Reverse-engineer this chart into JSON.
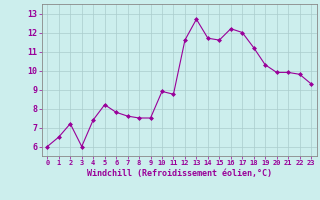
{
  "x": [
    0,
    1,
    2,
    3,
    4,
    5,
    6,
    7,
    8,
    9,
    10,
    11,
    12,
    13,
    14,
    15,
    16,
    17,
    18,
    19,
    20,
    21,
    22,
    23
  ],
  "y": [
    6.0,
    6.5,
    7.2,
    6.0,
    7.4,
    8.2,
    7.8,
    7.6,
    7.5,
    7.5,
    8.9,
    8.75,
    11.6,
    12.7,
    11.7,
    11.6,
    12.2,
    12.0,
    11.2,
    10.3,
    9.9,
    9.9,
    9.8,
    9.3
  ],
  "line_color": "#990099",
  "marker": "D",
  "marker_size": 2,
  "bg_color": "#cceeed",
  "grid_color": "#aacccc",
  "xlabel": "Windchill (Refroidissement éolien,°C)",
  "tick_color": "#990099",
  "ylim": [
    5.5,
    13.5
  ],
  "xlim": [
    -0.5,
    23.5
  ],
  "yticks": [
    6,
    7,
    8,
    9,
    10,
    11,
    12,
    13
  ],
  "xticks": [
    0,
    1,
    2,
    3,
    4,
    5,
    6,
    7,
    8,
    9,
    10,
    11,
    12,
    13,
    14,
    15,
    16,
    17,
    18,
    19,
    20,
    21,
    22,
    23
  ],
  "xtick_labels": [
    "0",
    "1",
    "2",
    "3",
    "4",
    "5",
    "6",
    "7",
    "8",
    "9",
    "10",
    "11",
    "12",
    "13",
    "14",
    "15",
    "16",
    "17",
    "18",
    "19",
    "20",
    "21",
    "22",
    "23"
  ]
}
